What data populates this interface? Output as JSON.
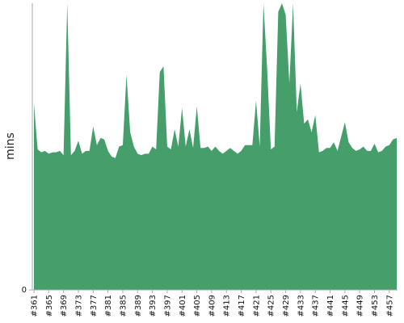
{
  "chart_data": {
    "type": "area",
    "title": "",
    "xlabel": "",
    "ylabel": "mins",
    "ylim": [
      0,
      100
    ],
    "y_ticks": [
      "0"
    ],
    "grid": false,
    "legend": "none",
    "color": "#469e6b",
    "x": [
      "#361",
      "#362",
      "#363",
      "#364",
      "#365",
      "#366",
      "#367",
      "#368",
      "#369",
      "#370",
      "#371",
      "#372",
      "#373",
      "#374",
      "#375",
      "#376",
      "#377",
      "#378",
      "#379",
      "#380",
      "#381",
      "#382",
      "#383",
      "#384",
      "#385",
      "#386",
      "#387",
      "#388",
      "#389",
      "#390",
      "#391",
      "#392",
      "#393",
      "#394",
      "#395",
      "#396",
      "#397",
      "#398",
      "#399",
      "#400",
      "#401",
      "#402",
      "#403",
      "#404",
      "#405",
      "#406",
      "#407",
      "#408",
      "#409",
      "#410",
      "#411",
      "#412",
      "#413",
      "#414",
      "#415",
      "#416",
      "#417",
      "#418",
      "#419",
      "#420",
      "#421",
      "#422",
      "#423",
      "#424",
      "#425",
      "#426",
      "#427",
      "#428",
      "#429",
      "#430",
      "#431",
      "#432",
      "#433",
      "#434",
      "#435",
      "#436",
      "#437",
      "#438",
      "#439",
      "#440",
      "#441",
      "#442",
      "#443",
      "#444",
      "#445",
      "#446",
      "#447",
      "#448",
      "#449",
      "#450",
      "#451",
      "#452",
      "#453",
      "#454",
      "#455",
      "#456",
      "#457",
      "#458",
      "#459"
    ],
    "x_tick_labels": [
      "#361",
      "#365",
      "#369",
      "#373",
      "#377",
      "#381",
      "#385",
      "#389",
      "#393",
      "#397",
      "#401",
      "#405",
      "#409",
      "#413",
      "#417",
      "#421",
      "#425",
      "#429",
      "#433",
      "#437",
      "#441",
      "#445",
      "#449",
      "#453",
      "#457"
    ],
    "values": [
      65,
      49,
      48,
      48.5,
      47.5,
      48,
      48,
      48.5,
      47,
      100,
      47,
      48.5,
      52,
      47.5,
      48.5,
      48.5,
      57,
      50.5,
      53,
      52.5,
      48.5,
      46.5,
      46,
      50,
      50.5,
      75,
      55,
      50,
      47.5,
      47,
      47.5,
      47.5,
      50,
      49,
      76,
      78,
      50,
      49,
      56,
      50,
      63.5,
      50,
      56,
      49.5,
      64,
      49.5,
      49.5,
      50,
      48.5,
      50,
      48.5,
      47.5,
      48.5,
      49.5,
      48.5,
      47.5,
      48.5,
      50.5,
      50.5,
      50.5,
      66,
      50,
      100,
      77,
      49,
      50,
      97,
      100,
      96,
      72,
      100,
      62,
      72,
      58,
      59.5,
      55,
      61,
      48,
      48.5,
      49.5,
      49.5,
      51.5,
      48.5,
      53.5,
      58.5,
      51.5,
      49.5,
      48.5,
      49,
      50,
      48.5,
      48.5,
      51,
      48,
      48.5,
      50,
      50.5,
      52.5,
      53
    ]
  }
}
